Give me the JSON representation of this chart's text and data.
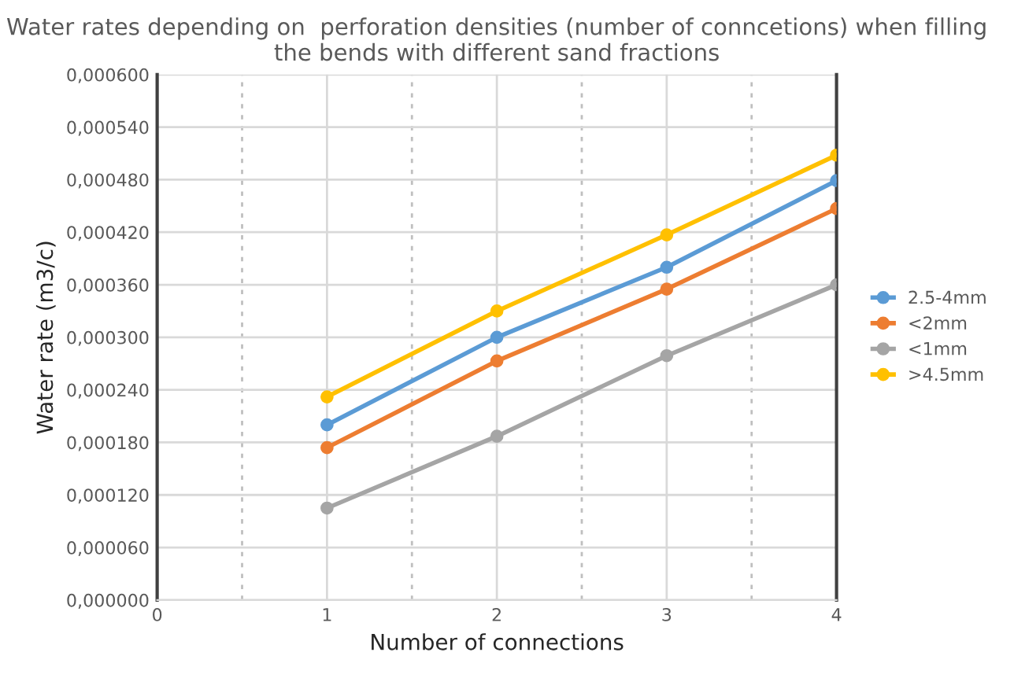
{
  "chart_data": {
    "type": "line",
    "title": "Water rates depending on  perforation densities (number of conncetions) when filling the bends with different sand fractions",
    "xlabel": "Number of connections",
    "ylabel": "Water rate (m3/c)",
    "x": [
      1,
      2,
      3,
      4
    ],
    "series": [
      {
        "name": "2.5-4mm",
        "color": "#5b9bd5",
        "values": [
          0.0002,
          0.0003,
          0.00038,
          0.000479
        ]
      },
      {
        "name": "<2mm",
        "color": "#ed7d31",
        "values": [
          0.000174,
          0.000273,
          0.000355,
          0.000447
        ]
      },
      {
        "name": "<1mm",
        "color": "#a5a5a5",
        "values": [
          0.000105,
          0.000187,
          0.000279,
          0.00036
        ]
      },
      {
        "name": ">4.5mm",
        "color": "#ffc000",
        "values": [
          0.000232,
          0.00033,
          0.000417,
          0.000508
        ]
      }
    ],
    "xlim": [
      0,
      4
    ],
    "xticks": [
      0,
      {
        "value": 0.5,
        "label": null
      },
      1,
      {
        "value": 1.5,
        "label": null
      },
      2,
      {
        "value": 2.5,
        "label": null
      },
      3,
      {
        "value": 3.5,
        "label": null
      },
      4
    ],
    "ylim": [
      0,
      0.0006
    ],
    "yticks": [
      {
        "value": 0,
        "label": "0,000000"
      },
      {
        "value": 6e-05,
        "label": "0,000060"
      },
      {
        "value": 0.00012,
        "label": "0,000120"
      },
      {
        "value": 0.00018,
        "label": "0,000180"
      },
      {
        "value": 0.00024,
        "label": "0,000240"
      },
      {
        "value": 0.0003,
        "label": "0,000300"
      },
      {
        "value": 0.00036,
        "label": "0,000360"
      },
      {
        "value": 0.00042,
        "label": "0,000420"
      },
      {
        "value": 0.00048,
        "label": "0,000480"
      },
      {
        "value": 0.00054,
        "label": "0,000540"
      },
      {
        "value": 0.0006,
        "label": "0,000600"
      }
    ],
    "grid": true,
    "legend": "right",
    "marker": "circle",
    "line_style": "solid"
  }
}
